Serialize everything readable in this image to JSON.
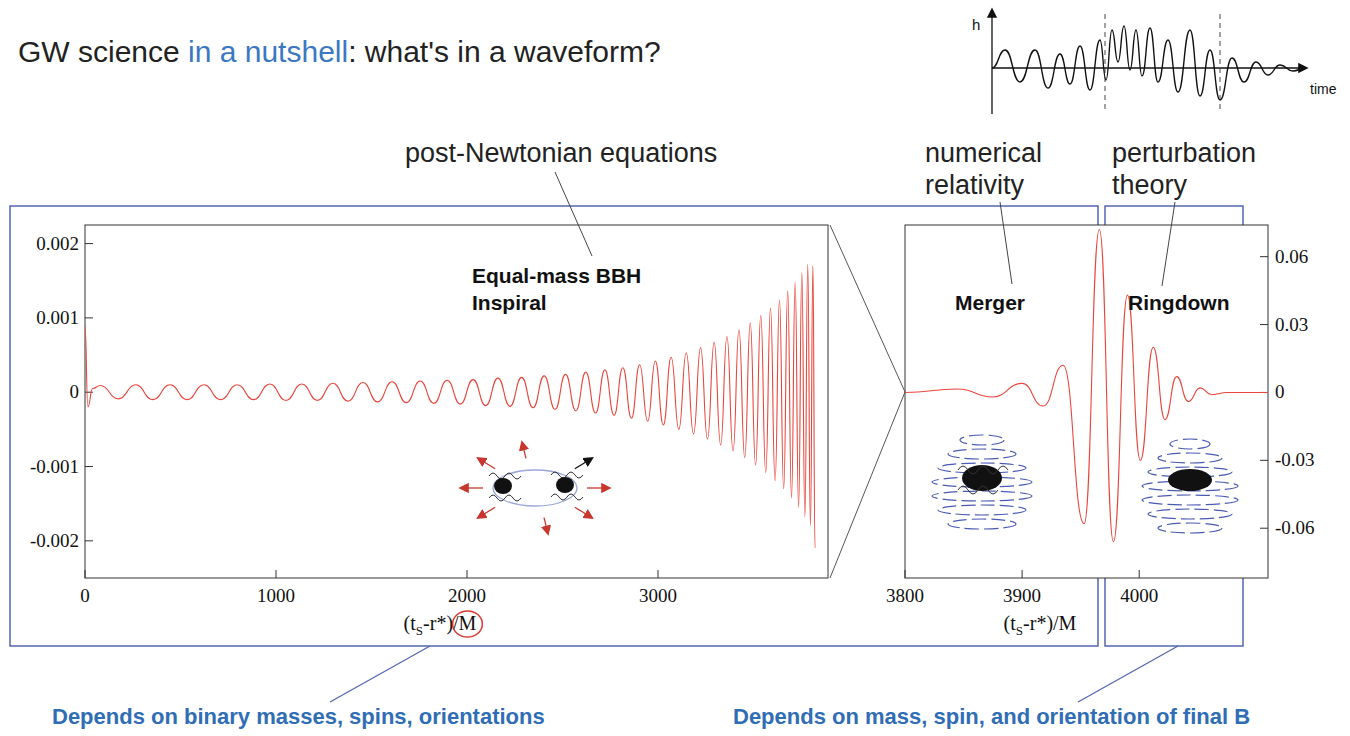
{
  "title": [
    "GW science ",
    "in a nutshell",
    ": what's in a waveform?"
  ],
  "sketch": {
    "y_label": "h",
    "x_label": "time"
  },
  "annotations": [
    "post-Newtonian equations",
    "numerical relativity",
    "perturbation theory"
  ],
  "captions": [
    "Depends on binary masses, spins, orientations",
    "Depends on mass, spin, and orientation of final B"
  ],
  "chart_data": [
    {
      "type": "line",
      "annotations": [
        "Equal-mass BBH",
        "Inspiral"
      ],
      "x_label": [
        "(t",
        "S",
        "-r*)/M"
      ],
      "x": [
        0,
        15,
        40,
        80,
        175,
        265,
        355,
        445,
        535,
        622,
        710,
        797,
        883,
        968,
        1052,
        1135,
        1217,
        1298,
        1377,
        1455,
        1532,
        1608,
        1682,
        1755,
        1826,
        1896,
        1965,
        2032,
        2098,
        2162,
        2225,
        2286,
        2346,
        2404,
        2461,
        2516,
        2570,
        2622,
        2673,
        2722,
        2770,
        2816,
        2861,
        2904,
        2946,
        2986,
        3028,
        3069,
        3109,
        3148,
        3186,
        3223,
        3259,
        3294,
        3328,
        3361,
        3393,
        3424,
        3454,
        3483,
        3511,
        3538,
        3564,
        3589,
        3613,
        3636,
        3658,
        3679,
        3699,
        3718,
        3736,
        3753,
        3769,
        3784,
        3798,
        3811,
        3822
      ],
      "series": [
        {
          "color": "#e8463c",
          "values": [
            0.0009,
            -0.0002,
            5e-05,
            9e-05,
            -9e-05,
            0.0001,
            -0.0001,
            0.0001,
            -0.0001,
            0.0001,
            -0.0001,
            0.0001,
            -0.0001,
            0.00011,
            -0.00011,
            0.00011,
            -0.00011,
            0.00012,
            -0.00012,
            0.00013,
            -0.00013,
            0.00014,
            -0.00014,
            0.00015,
            -0.00015,
            0.00016,
            -0.00016,
            0.00017,
            -0.00018,
            0.00019,
            -0.00019,
            0.0002,
            -0.00021,
            0.00022,
            -0.00023,
            0.00024,
            -0.00025,
            0.00027,
            -0.00028,
            0.0003,
            -0.00031,
            0.00033,
            -0.00035,
            0.00037,
            -0.00039,
            0.00042,
            -0.00044,
            0.00047,
            -0.0005,
            0.00053,
            -0.00056,
            0.0006,
            -0.00063,
            0.00067,
            -0.00071,
            0.00075,
            -0.00079,
            0.00084,
            -0.00088,
            0.00093,
            -0.00098,
            0.00103,
            -0.00108,
            0.00113,
            -0.00119,
            0.00124,
            -0.0013,
            0.00136,
            -0.00142,
            0.00148,
            -0.00155,
            0.00161,
            -0.00168,
            0.00172,
            -0.0018,
            0.0017,
            -0.0021
          ]
        }
      ],
      "xlim": [
        0,
        3890
      ],
      "ylim": [
        -0.0025,
        0.00225
      ],
      "xticks": [
        0,
        1000,
        2000,
        3000
      ],
      "yticks": [
        -0.002,
        -0.001,
        0,
        0.001,
        0.002
      ],
      "grid": false
    },
    {
      "type": "line",
      "annotations": [
        "Merger",
        "Ringdown"
      ],
      "x_label": [
        "(t",
        "S",
        "-r*)/M"
      ],
      "x": [
        3800,
        3845,
        3875,
        3900,
        3918,
        3935,
        3953,
        3966,
        3978,
        3990,
        4001,
        4012,
        4022,
        4032,
        4042,
        4052,
        4062,
        4075,
        4110
      ],
      "series": [
        {
          "color": "#e8463c",
          "axis": "y2",
          "values": [
            0,
            0.0015,
            -0.002,
            0.004,
            -0.006,
            0.012,
            -0.058,
            0.072,
            -0.066,
            0.043,
            -0.03,
            0.02,
            -0.012,
            0.007,
            -0.004,
            0.002,
            -0.001,
            0,
            0
          ]
        }
      ],
      "xlim": [
        3800,
        4110
      ],
      "y2lim": [
        -0.082,
        0.074
      ],
      "xticks": [
        3800,
        3900,
        4000
      ],
      "y2ticks": [
        -0.06,
        -0.03,
        0,
        0.03,
        0.06
      ],
      "grid": false
    }
  ]
}
